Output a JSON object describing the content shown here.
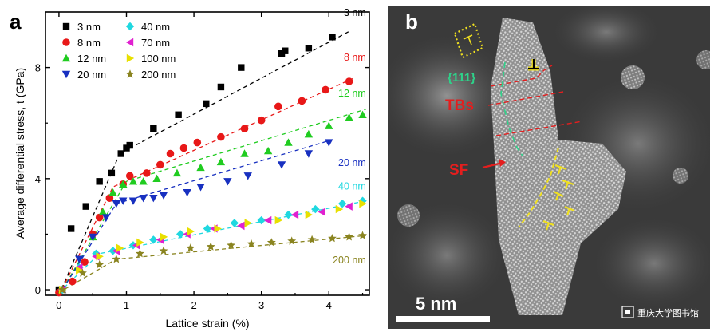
{
  "panel_a": {
    "letter": "a",
    "chart_data": {
      "type": "scatter",
      "xlabel": "Lattice strain (%)",
      "ylabel": "Average differential stress, t (GPa)",
      "xlim": [
        -0.2,
        4.6
      ],
      "ylim": [
        -0.2,
        10.0
      ],
      "xticks": [
        0,
        1,
        2,
        3,
        4
      ],
      "yticks": [
        0,
        4,
        8
      ],
      "legend_placement": "top-left",
      "series": [
        {
          "name": "3 nm",
          "label": "3 nm",
          "color": "#000000",
          "marker": "square",
          "x": [
            0.0,
            0.18,
            0.4,
            0.6,
            0.78,
            0.92,
            1.0,
            1.05,
            1.4,
            1.77,
            2.18,
            2.4,
            2.7,
            3.3,
            3.35,
            3.7,
            4.05
          ],
          "y": [
            0.0,
            2.2,
            3.0,
            3.9,
            4.2,
            4.9,
            5.1,
            5.2,
            5.8,
            6.3,
            6.7,
            7.3,
            8.0,
            8.5,
            8.6,
            8.7,
            9.1
          ],
          "fit_x": [
            0.0,
            0.9,
            4.3
          ],
          "fit_y": [
            -0.2,
            4.9,
            9.3
          ]
        },
        {
          "name": "8 nm",
          "label": "8 nm",
          "color": "#e81818",
          "marker": "circle",
          "x": [
            0.0,
            0.2,
            0.38,
            0.5,
            0.6,
            0.75,
            0.95,
            1.05,
            1.3,
            1.5,
            1.65,
            1.85,
            2.05,
            2.4,
            2.75,
            3.0,
            3.25,
            3.6,
            3.95,
            4.3
          ],
          "y": [
            -0.1,
            0.3,
            1.0,
            2.0,
            2.6,
            3.3,
            3.8,
            4.1,
            4.2,
            4.5,
            4.9,
            5.1,
            5.3,
            5.5,
            5.8,
            6.1,
            6.6,
            6.8,
            7.2,
            7.5
          ],
          "fit_x": [
            0.0,
            0.8,
            4.35
          ],
          "fit_y": [
            -0.2,
            3.7,
            7.6
          ]
        },
        {
          "name": "12 nm",
          "label": "12 nm",
          "color": "#20cc20",
          "marker": "triangle-up",
          "x": [
            0.05,
            0.3,
            0.5,
            0.65,
            0.8,
            0.95,
            1.1,
            1.25,
            1.45,
            1.75,
            2.1,
            2.4,
            2.75,
            3.1,
            3.4,
            3.7,
            4.0,
            4.3,
            4.5
          ],
          "y": [
            0.0,
            0.8,
            1.9,
            2.8,
            3.5,
            3.8,
            3.9,
            3.9,
            4.0,
            4.2,
            4.4,
            4.6,
            4.9,
            5.0,
            5.3,
            5.6,
            5.9,
            6.2,
            6.3
          ],
          "fit_x": [
            0.0,
            1.0,
            4.55
          ],
          "fit_y": [
            -0.2,
            3.9,
            6.5
          ]
        },
        {
          "name": "20 nm",
          "label": "20 nm",
          "color": "#1830c0",
          "marker": "triangle-down",
          "x": [
            0.05,
            0.3,
            0.5,
            0.7,
            0.85,
            0.95,
            1.1,
            1.25,
            1.4,
            1.55,
            1.9,
            2.1,
            2.5,
            2.8,
            3.3,
            3.7,
            4.0
          ],
          "y": [
            0.0,
            1.1,
            1.9,
            2.6,
            3.1,
            3.2,
            3.2,
            3.3,
            3.3,
            3.4,
            3.5,
            3.7,
            3.9,
            4.1,
            4.5,
            4.9,
            5.3
          ],
          "fit_x": [
            0.0,
            0.85,
            4.05
          ],
          "fit_y": [
            -0.2,
            3.1,
            5.4
          ]
        },
        {
          "name": "40 nm",
          "label": "40 nm",
          "color": "#20d8e0",
          "marker": "diamond",
          "x": [
            0.05,
            0.3,
            0.55,
            0.8,
            1.1,
            1.4,
            1.8,
            2.2,
            2.6,
            3.0,
            3.4,
            3.8,
            4.2,
            4.5
          ],
          "y": [
            0.0,
            0.8,
            1.3,
            1.4,
            1.6,
            1.8,
            2.0,
            2.2,
            2.4,
            2.5,
            2.7,
            2.9,
            3.1,
            3.2
          ],
          "fit_x": [
            0.0,
            0.6,
            4.55
          ],
          "fit_y": [
            -0.1,
            1.3,
            3.2
          ]
        },
        {
          "name": "70 nm",
          "label": "70 nm",
          "color": "#e020d0",
          "marker": "triangle-left",
          "x": [
            0.05,
            0.3,
            0.55,
            0.85,
            1.15,
            1.5,
            1.9,
            2.3,
            2.7,
            3.1,
            3.5,
            3.9,
            4.3
          ],
          "y": [
            0.0,
            0.8,
            1.2,
            1.4,
            1.6,
            1.8,
            2.0,
            2.2,
            2.3,
            2.5,
            2.7,
            2.8,
            3.0
          ],
          "fit_x": [],
          "fit_y": []
        },
        {
          "name": "100 nm",
          "label": "100 nm",
          "color": "#e8e000",
          "marker": "triangle-right",
          "x": [
            0.05,
            0.3,
            0.6,
            0.9,
            1.2,
            1.55,
            1.95,
            2.35,
            2.8,
            3.25,
            3.7,
            4.15,
            4.5
          ],
          "y": [
            0.0,
            0.7,
            1.2,
            1.5,
            1.7,
            1.9,
            2.1,
            2.2,
            2.4,
            2.5,
            2.7,
            2.9,
            3.1
          ],
          "fit_x": [],
          "fit_y": []
        },
        {
          "name": "200 nm",
          "label": "200 nm",
          "color": "#8a8420",
          "marker": "star",
          "x": [
            0.05,
            0.35,
            0.6,
            0.85,
            1.2,
            1.55,
            1.95,
            2.25,
            2.55,
            2.85,
            3.15,
            3.45,
            3.75,
            4.05,
            4.3,
            4.5
          ],
          "y": [
            0.0,
            0.6,
            0.9,
            1.1,
            1.3,
            1.4,
            1.5,
            1.55,
            1.6,
            1.65,
            1.7,
            1.75,
            1.8,
            1.85,
            1.9,
            1.95
          ],
          "fit_x": [
            0.0,
            0.85,
            4.55
          ],
          "fit_y": [
            -0.1,
            1.1,
            1.95
          ]
        }
      ]
    }
  },
  "panel_b": {
    "letter": "b",
    "label_111": "{111}",
    "label_tbs": "TBs",
    "label_sf": "SF",
    "scale_bar": "5 nm",
    "watermark": "重庆大学图书馆",
    "colors": {
      "background": "#3a3a3a",
      "red": "#e41e1e",
      "green": "#2ed28a",
      "yellow": "#f0e020"
    }
  }
}
